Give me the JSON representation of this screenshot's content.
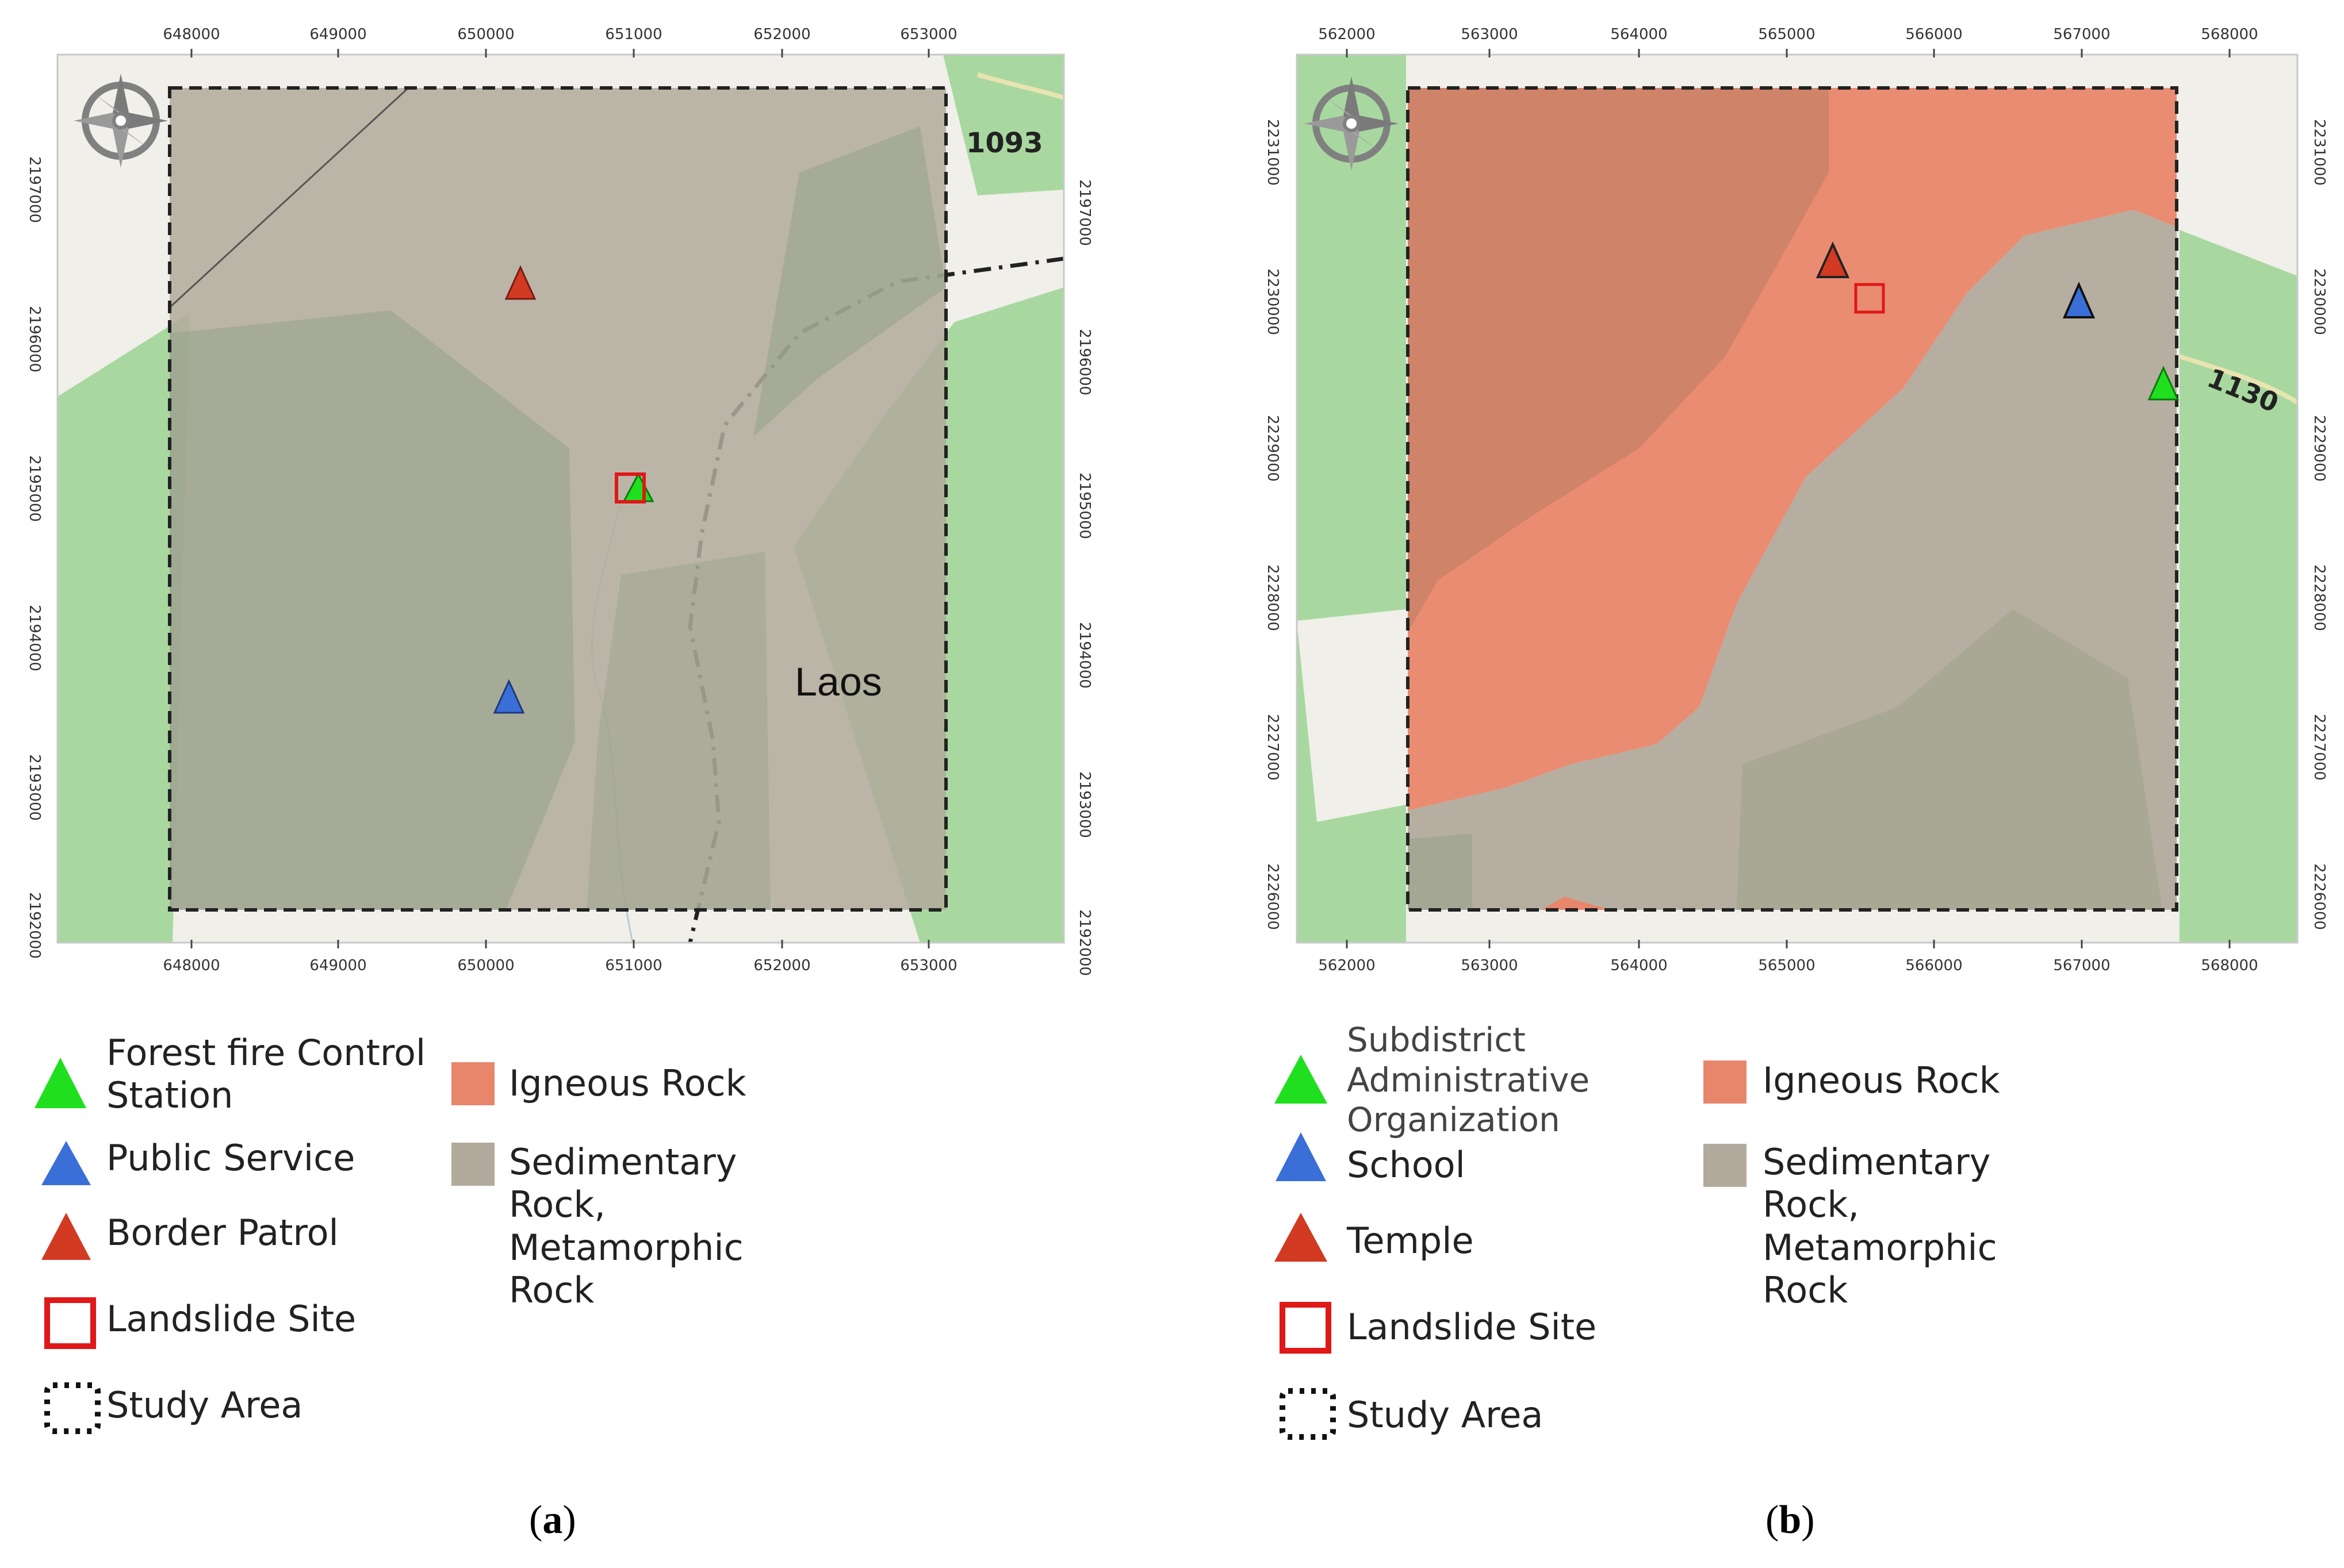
{
  "panel_a": {
    "caption_letter": "a",
    "x_ticks": [
      "648000",
      "649000",
      "650000",
      "651000",
      "652000",
      "653000"
    ],
    "y_ticks": [
      "2197000",
      "2196000",
      "2195000",
      "2194000",
      "2193000",
      "2192000"
    ],
    "road_label": "1093",
    "country_label": "Laos",
    "legend": {
      "forest_fire": "Forest fire Control Station",
      "public_service": "Public Service",
      "border_patrol": "Border Patrol",
      "landslide": "Landslide Site",
      "study_area": "Study Area",
      "igneous": "Igneous Rock",
      "sedimentary": "Sedimentary Rock, Metamorphic Rock"
    }
  },
  "panel_b": {
    "caption_letter": "b",
    "x_ticks": [
      "562000",
      "563000",
      "564000",
      "565000",
      "566000",
      "567000",
      "568000"
    ],
    "y_ticks": [
      "2231000",
      "2230000",
      "2229000",
      "2228000",
      "2227000",
      "2226000"
    ],
    "road_label": "1130",
    "legend": {
      "sao": "Subdistrict Administrative Organization",
      "school": "School",
      "temple": "Temple",
      "landslide": "Landslide Site",
      "study_area": "Study Area",
      "igneous": "Igneous Rock",
      "sedimentary": "Sedimentary Rock, Metamorphic Rock"
    }
  },
  "colors": {
    "forest_green": "#a8d8a0",
    "basemap": "#f0efe9",
    "igneous": "#e8866c",
    "sedimentary": "#b2aa9c",
    "green_marker": "#1fdf1f",
    "blue_marker": "#3a6fd8",
    "red_marker": "#d23a22"
  }
}
